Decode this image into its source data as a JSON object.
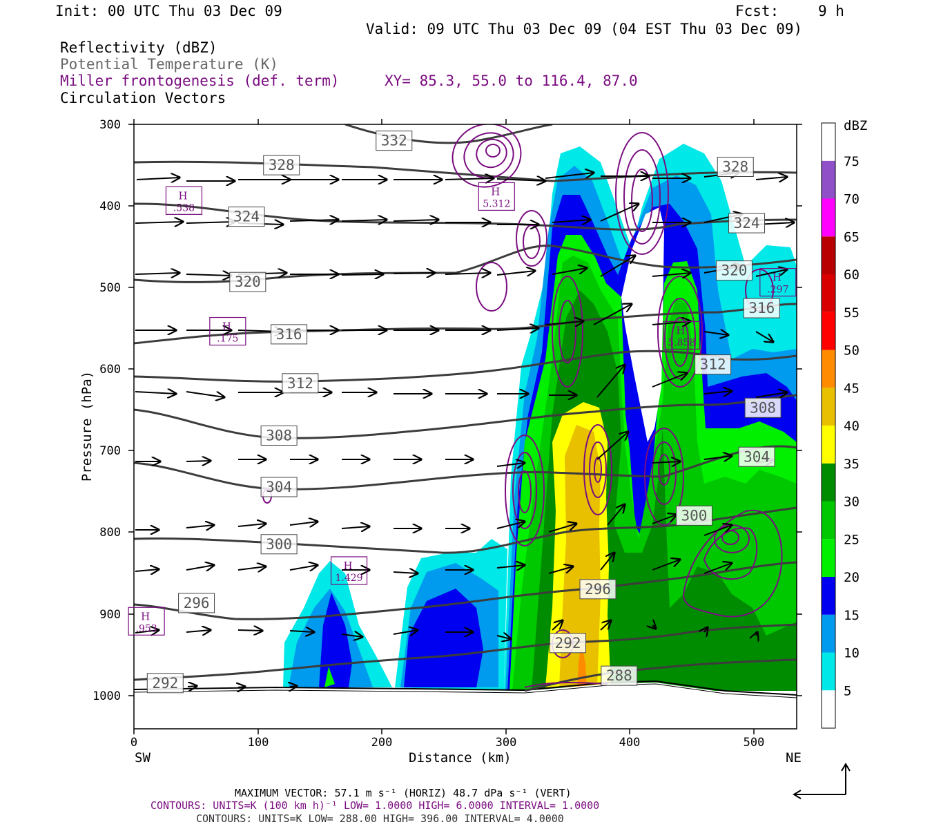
{
  "header": {
    "init": "Init: 00 UTC Thu 03 Dec 09",
    "fcst_label": "Fcst:",
    "fcst_value": "9 h",
    "valid": "Valid: 09 UTC Thu 03 Dec 09 (04 EST Thu 03 Dec 09)"
  },
  "legend_titles": {
    "reflectivity": "Reflectivity (dBZ)",
    "theta": "Potential Temperature (K)",
    "frontogenesis": "Miller frontogenesis (def. term)",
    "xy": "XY=  85.3, 55.0 to 116.4, 87.0",
    "vectors": "Circulation Vectors"
  },
  "colors": {
    "purple": "#7a0d80",
    "theta_line": "#3c3c3c",
    "theta_label": "#555555"
  },
  "footer": {
    "max_vector": "MAXIMUM VECTOR:  57.1 m s⁻¹ (HORIZ)         48.7 dPa s⁻¹ (VERT)",
    "contours_fg": "CONTOURS:  UNITS=K (100 km h)⁻¹  LOW=  1.0000       HIGH=  6.0000       INTERVAL=   1.0000",
    "contours_theta": "CONTOURS:  UNITS=K  LOW=  288.00       HIGH=  396.00       INTERVAL=   4.0000"
  },
  "colorbar": {
    "unit": "dBZ",
    "levels": [
      "5",
      "10",
      "15",
      "20",
      "25",
      "30",
      "35",
      "40",
      "45",
      "50",
      "55",
      "60",
      "65",
      "70",
      "75"
    ],
    "colors": [
      "#ffffff",
      "#00e8e8",
      "#009aee",
      "#0000f0",
      "#00f000",
      "#00c800",
      "#008c00",
      "#ffff00",
      "#e8c000",
      "#ff8c00",
      "#ff0000",
      "#d80000",
      "#b80000",
      "#ff00ff",
      "#9050c8",
      "#ffffff"
    ]
  },
  "chart_data": {
    "type": "contour-cross-section",
    "xlabel": "Distance (km)",
    "ylabel": "Pressure (hPa)",
    "x_ticks": [
      "0",
      "100",
      "200",
      "300",
      "400",
      "500"
    ],
    "y_ticks": [
      "300",
      "400",
      "500",
      "600",
      "700",
      "800",
      "900",
      "1000"
    ],
    "xlim": [
      0,
      530
    ],
    "ylim": [
      1040,
      300
    ],
    "left_end_label": "SW",
    "right_end_label": "NE",
    "theta_labels": [
      {
        "text": "332",
        "x": 208,
        "p": 320
      },
      {
        "text": "328",
        "x": 118,
        "p": 350
      },
      {
        "text": "328",
        "x": 481,
        "p": 352
      },
      {
        "text": "324",
        "x": 90,
        "p": 413
      },
      {
        "text": "324",
        "x": 490,
        "p": 421
      },
      {
        "text": "320",
        "x": 91,
        "p": 493
      },
      {
        "text": "320",
        "x": 480,
        "p": 479
      },
      {
        "text": "316",
        "x": 124,
        "p": 557
      },
      {
        "text": "316",
        "x": 502,
        "p": 525
      },
      {
        "text": "312",
        "x": 133,
        "p": 617
      },
      {
        "text": "312",
        "x": 463,
        "p": 594
      },
      {
        "text": "308",
        "x": 116,
        "p": 681
      },
      {
        "text": "308",
        "x": 503,
        "p": 647
      },
      {
        "text": "304",
        "x": 116,
        "p": 744
      },
      {
        "text": "304",
        "x": 498,
        "p": 707
      },
      {
        "text": "300",
        "x": 116,
        "p": 814
      },
      {
        "text": "300",
        "x": 448,
        "p": 779
      },
      {
        "text": "296",
        "x": 50,
        "p": 886
      },
      {
        "text": "296",
        "x": 371,
        "p": 869
      },
      {
        "text": "292",
        "x": 25,
        "p": 984
      },
      {
        "text": "292",
        "x": 347,
        "p": 935
      },
      {
        "text": "288",
        "x": 388,
        "p": 975
      }
    ],
    "fg_highs": [
      {
        "text": "H",
        "value": ".538",
        "x": 40,
        "p": 395
      },
      {
        "text": "H",
        "value": "5.312",
        "x": 290,
        "p": 390
      },
      {
        "text": "H",
        "value": ".175",
        "x": 75,
        "p": 555
      },
      {
        "text": "H",
        "value": "1.429",
        "x": 172,
        "p": 848
      },
      {
        "text": "H",
        "value": ".953",
        "x": 10,
        "p": 910
      },
      {
        "text": "H",
        "value": ".297",
        "x": 515,
        "p": 495
      },
      {
        "text": "H",
        "value": "5.858",
        "x": 438,
        "p": 560
      }
    ]
  }
}
